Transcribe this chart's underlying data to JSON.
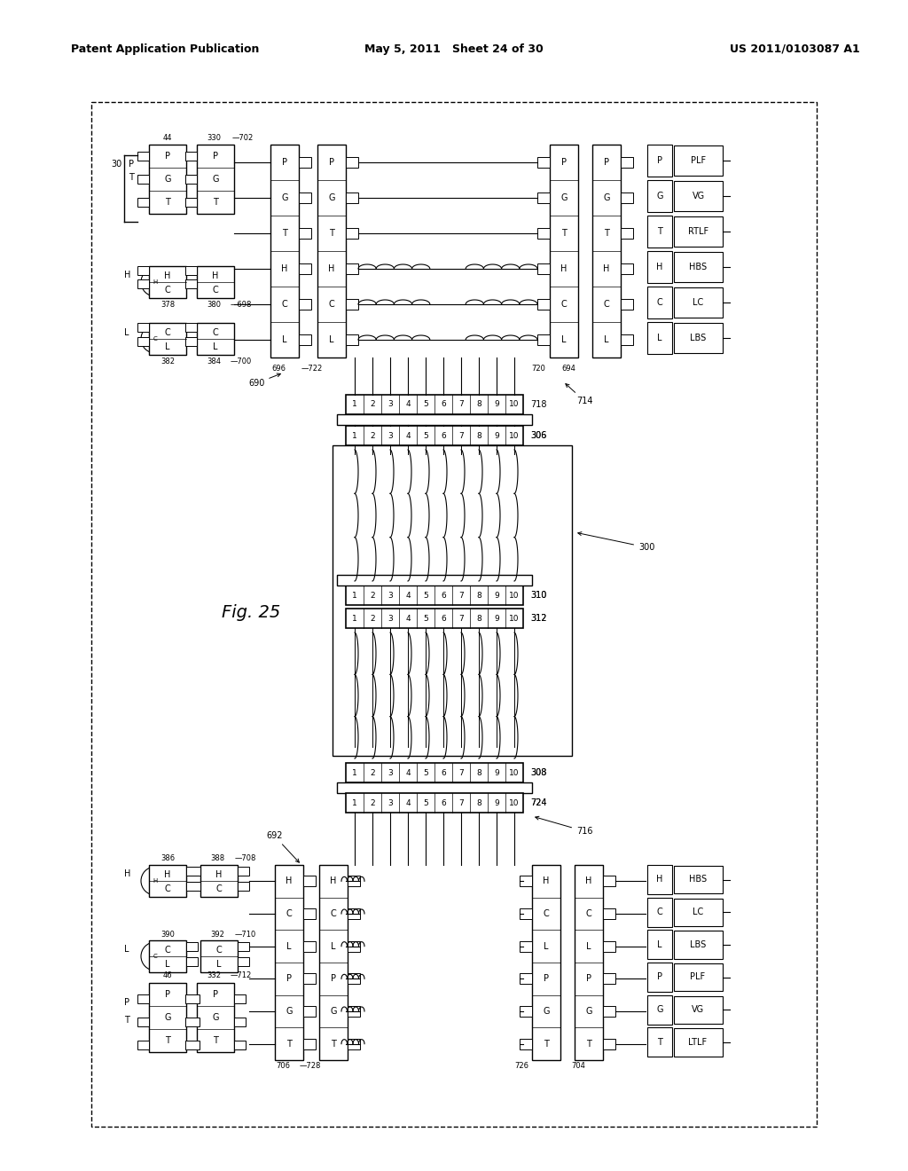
{
  "title_left": "Patent Application Publication",
  "title_center": "May 5, 2011   Sheet 24 of 30",
  "title_right": "US 2011/0103087 A1",
  "fig_label": "Fig. 25",
  "top_right_labels": [
    "PLF",
    "VG",
    "RTLF",
    "HBS",
    "LC",
    "LBS"
  ],
  "bottom_right_labels": [
    "HBS",
    "LC",
    "LBS",
    "PLF",
    "VG",
    "LTLF"
  ],
  "connector_numbers": [
    "1",
    "2",
    "3",
    "4",
    "5",
    "6",
    "7",
    "8",
    "9",
    "10"
  ]
}
